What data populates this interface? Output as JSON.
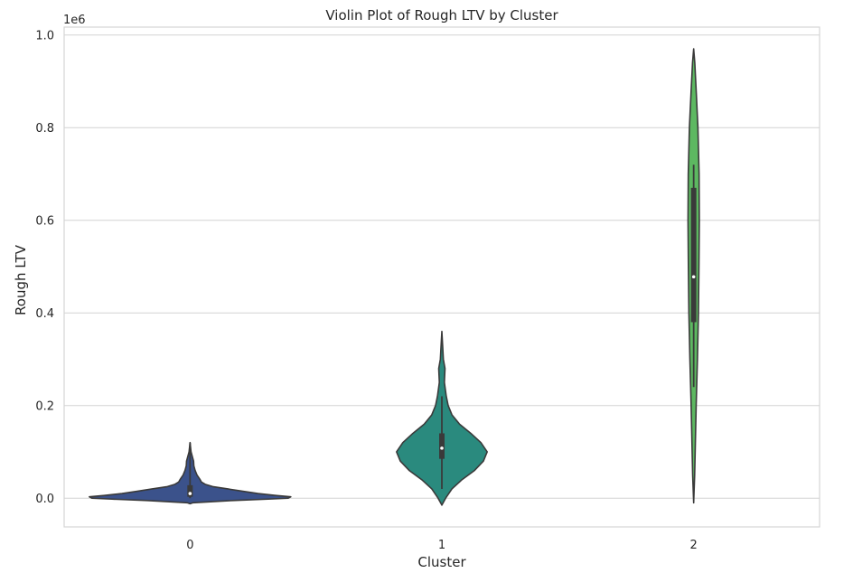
{
  "chart_data": {
    "type": "violin",
    "title": "Violin Plot of Rough LTV by Cluster",
    "xlabel": "Cluster",
    "ylabel": "Rough LTV",
    "y_offset_label": "1e6",
    "categories": [
      "0",
      "1",
      "2"
    ],
    "yticks": [
      0.0,
      0.2,
      0.4,
      0.6,
      0.8,
      1.0
    ],
    "ytick_labels": [
      "0.0",
      "0.2",
      "0.4",
      "0.6",
      "0.8",
      "1.0"
    ],
    "ylim": [
      -0.062,
      1.017
    ],
    "grid": "horizontal",
    "legend": "none",
    "series": [
      {
        "category": "0",
        "color": "#3b528b",
        "min": -0.01,
        "max": 0.12,
        "q1": 0.003,
        "median": 0.01,
        "q3": 0.028,
        "whisker_low": 0.0,
        "whisker_high": 0.12,
        "density_profile": [
          [
            -0.012,
            0.0
          ],
          [
            -0.01,
            0.02
          ],
          [
            -0.005,
            0.34
          ],
          [
            -0.002,
            0.62
          ],
          [
            0.0,
            0.78
          ],
          [
            0.003,
            0.8
          ],
          [
            0.006,
            0.68
          ],
          [
            0.01,
            0.54
          ],
          [
            0.015,
            0.42
          ],
          [
            0.02,
            0.3
          ],
          [
            0.025,
            0.18
          ],
          [
            0.03,
            0.12
          ],
          [
            0.035,
            0.09
          ],
          [
            0.04,
            0.08
          ],
          [
            0.05,
            0.055
          ],
          [
            0.06,
            0.04
          ],
          [
            0.07,
            0.03
          ],
          [
            0.08,
            0.028
          ],
          [
            0.09,
            0.018
          ],
          [
            0.1,
            0.008
          ],
          [
            0.11,
            0.004
          ],
          [
            0.12,
            0.0
          ]
        ]
      },
      {
        "category": "1",
        "color": "#2a8a7e",
        "min": -0.015,
        "max": 0.36,
        "q1": 0.085,
        "median": 0.108,
        "q3": 0.14,
        "whisker_low": 0.02,
        "whisker_high": 0.22,
        "density_profile": [
          [
            -0.015,
            0.0
          ],
          [
            0.0,
            0.03
          ],
          [
            0.02,
            0.08
          ],
          [
            0.04,
            0.16
          ],
          [
            0.06,
            0.26
          ],
          [
            0.08,
            0.33
          ],
          [
            0.1,
            0.36
          ],
          [
            0.12,
            0.31
          ],
          [
            0.14,
            0.23
          ],
          [
            0.16,
            0.14
          ],
          [
            0.18,
            0.08
          ],
          [
            0.2,
            0.05
          ],
          [
            0.22,
            0.035
          ],
          [
            0.25,
            0.02
          ],
          [
            0.28,
            0.025
          ],
          [
            0.3,
            0.012
          ],
          [
            0.33,
            0.006
          ],
          [
            0.36,
            0.0
          ]
        ]
      },
      {
        "category": "2",
        "color": "#5db861",
        "min": -0.01,
        "max": 0.97,
        "q1": 0.38,
        "median": 0.478,
        "q3": 0.67,
        "whisker_low": 0.24,
        "whisker_high": 0.72,
        "density_profile": [
          [
            -0.01,
            0.0
          ],
          [
            0.05,
            0.008
          ],
          [
            0.1,
            0.012
          ],
          [
            0.2,
            0.02
          ],
          [
            0.3,
            0.03
          ],
          [
            0.4,
            0.038
          ],
          [
            0.5,
            0.042
          ],
          [
            0.6,
            0.045
          ],
          [
            0.7,
            0.043
          ],
          [
            0.8,
            0.034
          ],
          [
            0.88,
            0.02
          ],
          [
            0.94,
            0.009
          ],
          [
            0.97,
            0.0
          ]
        ]
      }
    ]
  }
}
